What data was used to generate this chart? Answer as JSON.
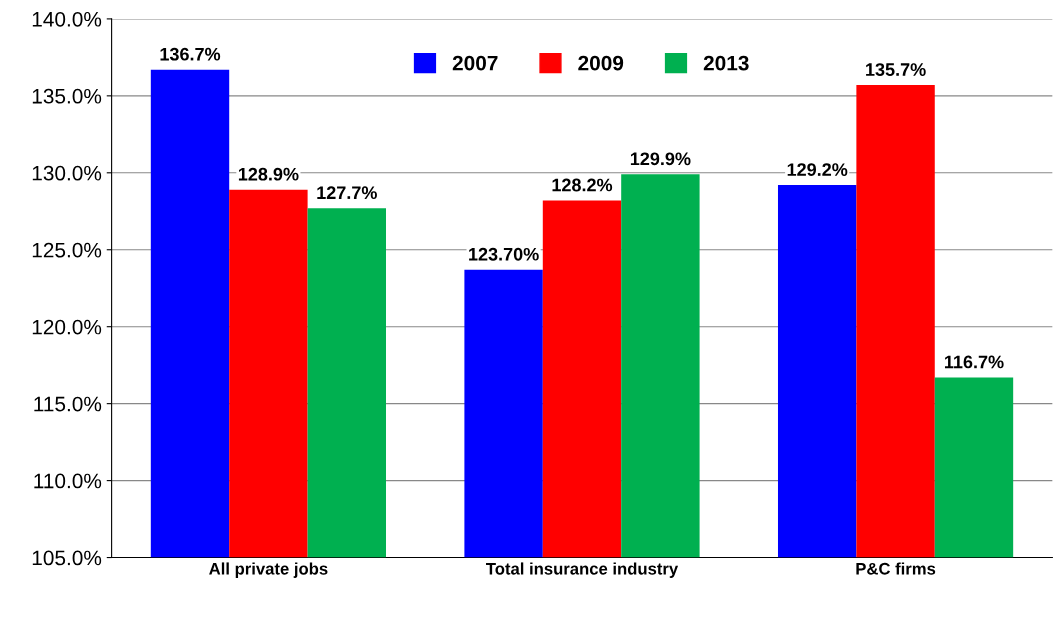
{
  "chart_data": {
    "type": "bar",
    "categories": [
      "All private jobs",
      "Total insurance industry",
      "P&C firms"
    ],
    "series": [
      {
        "name": "2007",
        "color": "#0000ff",
        "values": [
          136.7,
          123.7,
          129.2
        ],
        "value_labels": [
          "136.7%",
          "123.70%",
          "129.2%"
        ]
      },
      {
        "name": "2009",
        "color": "#ff0000",
        "values": [
          128.9,
          128.2,
          135.7
        ],
        "value_labels": [
          "128.9%",
          "128.2%",
          "135.7%"
        ]
      },
      {
        "name": "2013",
        "color": "#00b050",
        "values": [
          127.7,
          129.9,
          116.7
        ],
        "value_labels": [
          "127.7%",
          "129.9%",
          "116.7%"
        ]
      }
    ],
    "ylim": [
      105,
      140
    ],
    "yticks": [
      {
        "value": 105,
        "label": "105.0%"
      },
      {
        "value": 110,
        "label": "110.0%"
      },
      {
        "value": 115,
        "label": "115.0%"
      },
      {
        "value": 120,
        "label": "120.0%"
      },
      {
        "value": 125,
        "label": "125.0%"
      },
      {
        "value": 130,
        "label": "130.0%"
      },
      {
        "value": 135,
        "label": "135.0%"
      },
      {
        "value": 140,
        "label": "140.0%"
      }
    ],
    "grid": "y",
    "legend": "top"
  }
}
